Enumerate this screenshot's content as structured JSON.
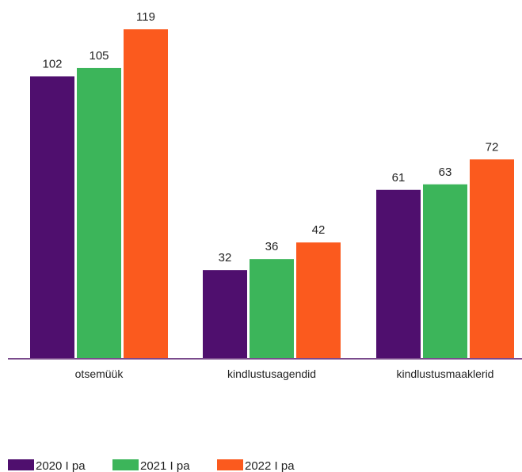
{
  "chart_data": {
    "type": "bar",
    "categories": [
      "otsemüük",
      "kindlustusagendid",
      "kindlustusmaaklerid"
    ],
    "series": [
      {
        "name": "2020 I pa",
        "values": [
          102,
          32,
          61
        ],
        "color": "#4f0f6e"
      },
      {
        "name": "2021 I pa",
        "values": [
          105,
          36,
          63
        ],
        "color": "#3cb55a"
      },
      {
        "name": "2022 I pa",
        "values": [
          119,
          42,
          72
        ],
        "color": "#fb5a1e"
      }
    ],
    "ylim": [
      0,
      119
    ],
    "axis_color": "#7a4a8c",
    "grid": false,
    "legend": "bottom-left",
    "data_labels": true
  }
}
